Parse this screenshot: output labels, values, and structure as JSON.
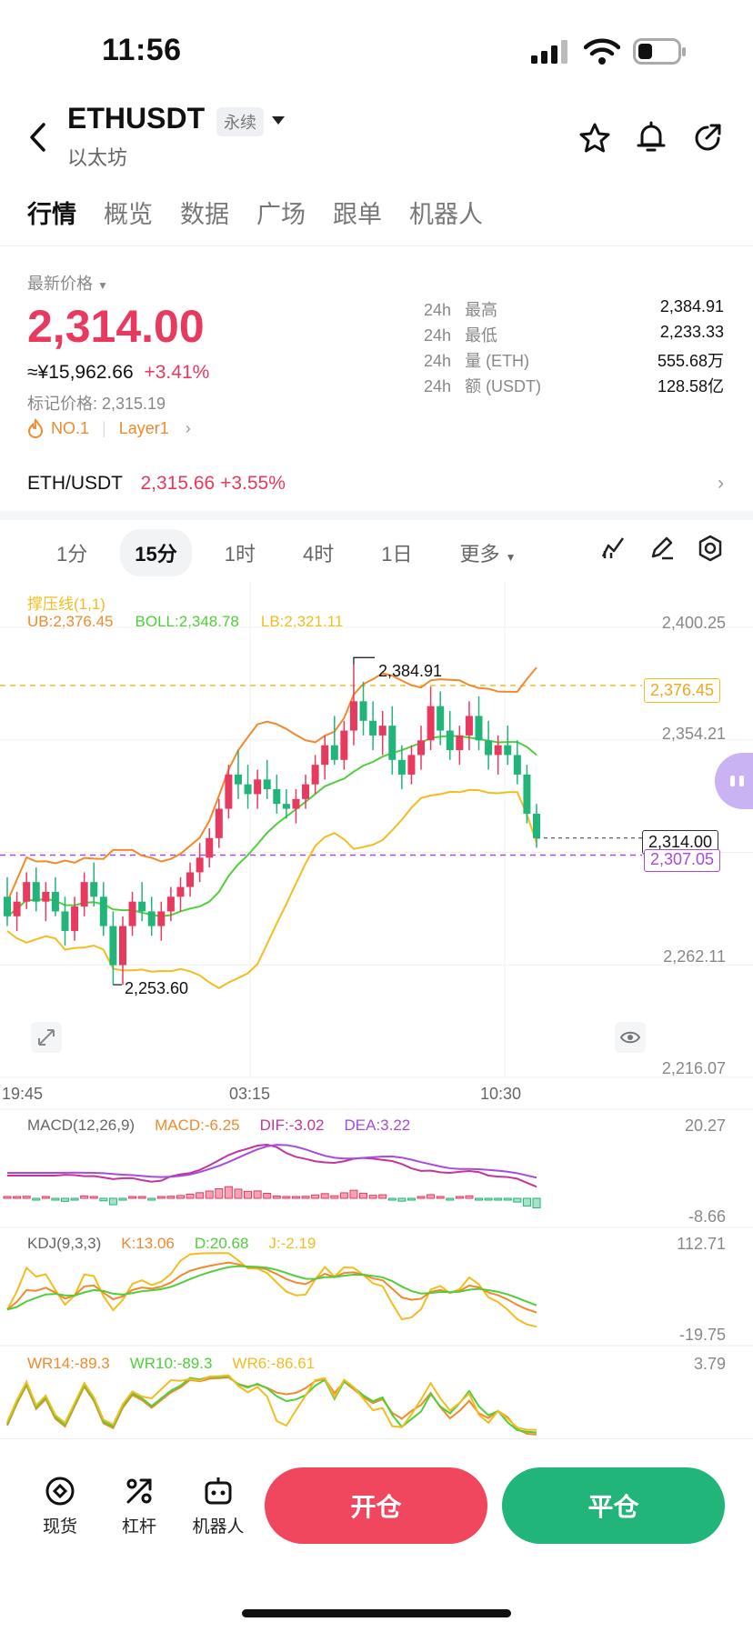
{
  "status": {
    "time": "11:56"
  },
  "header": {
    "symbol": "ETHUSDT",
    "badge": "永续",
    "subtitle": "以太坊"
  },
  "tabs": [
    "行情",
    "概览",
    "数据",
    "广场",
    "跟单",
    "机器人"
  ],
  "price": {
    "label": "最新价格",
    "last": "2,314.00",
    "cny": "≈¥15,962.66",
    "change": "+3.41%",
    "mark": "标记价格: 2,315.19",
    "rank": "NO.1",
    "tag": "Layer1"
  },
  "stats": [
    {
      "period": "24h",
      "key": "最高",
      "value": "2,384.91"
    },
    {
      "period": "24h",
      "key": "最低",
      "value": "2,233.33"
    },
    {
      "period": "24h",
      "key": "量 (ETH)",
      "value": "555.68万"
    },
    {
      "period": "24h",
      "key": "额 (USDT)",
      "value": "128.58亿"
    }
  ],
  "spot": {
    "pair": "ETH/USDT",
    "price": "2,315.66",
    "change": "+3.55%"
  },
  "timeframes": [
    "1分",
    "15分",
    "1时",
    "4时",
    "1日",
    "更多"
  ],
  "main_indicator": {
    "name": "撑压线(1,1)",
    "ub": "UB:2,376.45",
    "boll": "BOLL:2,348.78",
    "lb": "LB:2,321.11"
  },
  "price_axis": [
    "2,400.25",
    "2,354.21",
    "2,262.11",
    "2,216.07"
  ],
  "time_axis": [
    "19:45",
    "03:15",
    "10:30"
  ],
  "markers": {
    "high": "2,384.91",
    "low": "2,253.60",
    "resistance": "2,376.45",
    "current": "2,314.00",
    "support": "2,307.05"
  },
  "macd": {
    "name": "MACD(12,26,9)",
    "macd": "MACD:-6.25",
    "dif": "DIF:-3.02",
    "dea": "DEA:3.22",
    "max": "20.27",
    "min": "-8.66"
  },
  "kdj": {
    "name": "KDJ(9,3,3)",
    "k": "K:13.06",
    "d": "D:20.68",
    "j": "J:-2.19",
    "max": "112.71",
    "min": "-19.75"
  },
  "wr": {
    "wr14": "WR14:-89.3",
    "wr10": "WR10:-89.3",
    "wr6": "WR6:-86.61",
    "max": "3.79"
  },
  "bottom_nav": [
    "现货",
    "杠杆",
    "机器人"
  ],
  "actions": {
    "open": "开仓",
    "close": "平仓"
  },
  "colors": {
    "up": "#e8395f",
    "down": "#21b57a",
    "ub": "#f08a2c",
    "boll": "#4fcf3a",
    "lb": "#f2bd1f",
    "dif": "#c4359a",
    "dea": "#a54be0"
  },
  "chart_data": {
    "type": "candlestick",
    "ylim": [
      2216.07,
      2400.25
    ],
    "x_ticks": [
      "19:45",
      "03:15",
      "10:30"
    ],
    "ohlc": [
      [
        2290,
        2298,
        2278,
        2282
      ],
      [
        2282,
        2292,
        2276,
        2288
      ],
      [
        2288,
        2300,
        2285,
        2296
      ],
      [
        2296,
        2302,
        2284,
        2288
      ],
      [
        2288,
        2296,
        2280,
        2292
      ],
      [
        2292,
        2298,
        2282,
        2284
      ],
      [
        2284,
        2290,
        2270,
        2276
      ],
      [
        2276,
        2290,
        2272,
        2286
      ],
      [
        2286,
        2300,
        2282,
        2296
      ],
      [
        2296,
        2304,
        2286,
        2290
      ],
      [
        2290,
        2296,
        2274,
        2278
      ],
      [
        2278,
        2284,
        2254,
        2262
      ],
      [
        2262,
        2282,
        2254,
        2278
      ],
      [
        2278,
        2292,
        2274,
        2288
      ],
      [
        2288,
        2296,
        2280,
        2284
      ],
      [
        2284,
        2290,
        2274,
        2278
      ],
      [
        2278,
        2288,
        2272,
        2284
      ],
      [
        2284,
        2294,
        2280,
        2290
      ],
      [
        2290,
        2298,
        2284,
        2294
      ],
      [
        2294,
        2304,
        2290,
        2300
      ],
      [
        2300,
        2312,
        2296,
        2306
      ],
      [
        2306,
        2318,
        2302,
        2314
      ],
      [
        2314,
        2330,
        2310,
        2326
      ],
      [
        2326,
        2344,
        2322,
        2340
      ],
      [
        2340,
        2350,
        2330,
        2336
      ],
      [
        2336,
        2344,
        2326,
        2332
      ],
      [
        2332,
        2342,
        2326,
        2338
      ],
      [
        2338,
        2346,
        2330,
        2334
      ],
      [
        2334,
        2340,
        2324,
        2328
      ],
      [
        2328,
        2334,
        2322,
        2326
      ],
      [
        2326,
        2334,
        2320,
        2330
      ],
      [
        2330,
        2340,
        2326,
        2336
      ],
      [
        2336,
        2348,
        2332,
        2344
      ],
      [
        2344,
        2356,
        2338,
        2352
      ],
      [
        2352,
        2364,
        2344,
        2346
      ],
      [
        2346,
        2362,
        2342,
        2358
      ],
      [
        2358,
        2384.91,
        2352,
        2370
      ],
      [
        2370,
        2378,
        2356,
        2362
      ],
      [
        2362,
        2370,
        2350,
        2356
      ],
      [
        2356,
        2366,
        2348,
        2360
      ],
      [
        2360,
        2368,
        2340,
        2346
      ],
      [
        2346,
        2352,
        2334,
        2340
      ],
      [
        2340,
        2352,
        2336,
        2348
      ],
      [
        2348,
        2360,
        2342,
        2354
      ],
      [
        2354,
        2376,
        2350,
        2368
      ],
      [
        2368,
        2374,
        2352,
        2358
      ],
      [
        2358,
        2366,
        2346,
        2350
      ],
      [
        2350,
        2360,
        2344,
        2356
      ],
      [
        2356,
        2370,
        2350,
        2364
      ],
      [
        2364,
        2372,
        2350,
        2354
      ],
      [
        2354,
        2362,
        2342,
        2348
      ],
      [
        2348,
        2356,
        2340,
        2352
      ],
      [
        2352,
        2360,
        2344,
        2348
      ],
      [
        2348,
        2354,
        2336,
        2340
      ],
      [
        2340,
        2344,
        2320,
        2324
      ],
      [
        2324,
        2328,
        2310,
        2314
      ]
    ]
  }
}
